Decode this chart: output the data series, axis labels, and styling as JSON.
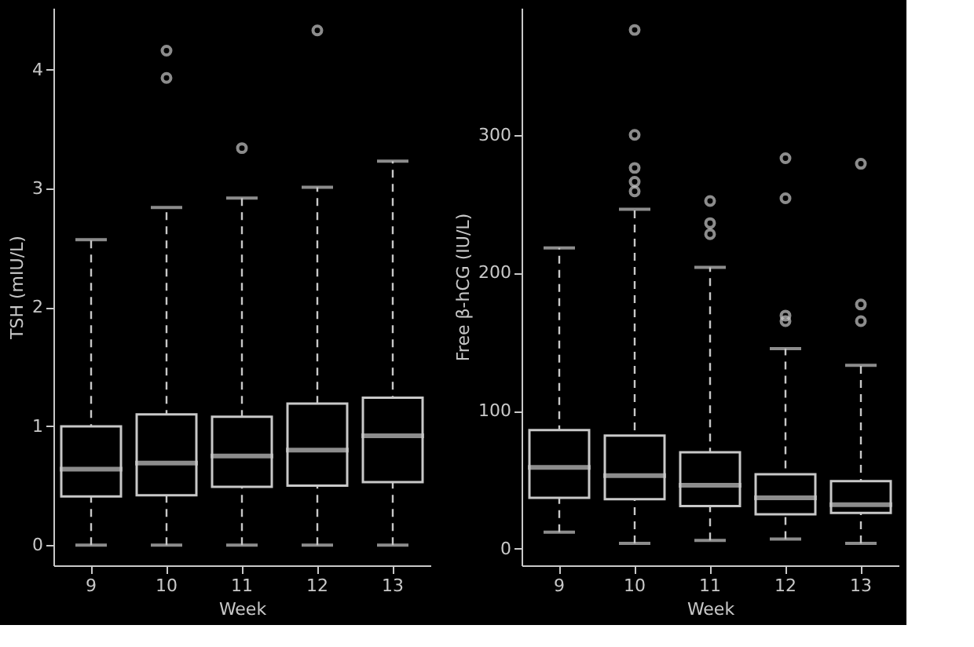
{
  "chart_data": [
    {
      "type": "box",
      "xlabel": "Week",
      "ylabel": "TSH (mIU/L)",
      "categories": [
        "9",
        "10",
        "11",
        "12",
        "13"
      ],
      "ylim": [
        -0.17,
        4.52
      ],
      "yticks": [
        0,
        1,
        2,
        3,
        4
      ],
      "grid": false,
      "line_style": "dashed",
      "series": [
        {
          "color": "#c8c8c8",
          "boxes": [
            {
              "low": 0,
              "q1": 0.41,
              "median": 0.64,
              "q3": 1.0,
              "high": 2.57
            },
            {
              "low": 0,
              "q1": 0.42,
              "median": 0.69,
              "q3": 1.1,
              "high": 2.84,
              "outliers": [
                4.16,
                3.93
              ]
            },
            {
              "low": 0,
              "q1": 0.49,
              "median": 0.75,
              "q3": 1.08,
              "high": 2.92,
              "outliers": [
                3.34
              ]
            },
            {
              "low": 0,
              "q1": 0.5,
              "median": 0.8,
              "q3": 1.19,
              "high": 3.01,
              "outliers": [
                4.33
              ]
            },
            {
              "low": 0,
              "q1": 0.53,
              "median": 0.92,
              "q3": 1.24,
              "high": 3.23
            }
          ]
        }
      ]
    },
    {
      "type": "box",
      "xlabel": "Week",
      "ylabel": "Free β-hCG (IU/L)",
      "categories": [
        "9",
        "10",
        "11",
        "12",
        "13"
      ],
      "ylim": [
        -12,
        392
      ],
      "yticks": [
        0,
        100,
        200,
        300
      ],
      "grid": false,
      "line_style": "dashed",
      "series": [
        {
          "color": "#c8c8c8",
          "boxes": [
            {
              "low": 12,
              "q1": 37,
              "median": 59,
              "q3": 86,
              "high": 218
            },
            {
              "low": 4,
              "q1": 36,
              "median": 53,
              "q3": 82,
              "high": 246,
              "outliers": [
                376,
                300,
                276,
                266,
                259
              ]
            },
            {
              "low": 6,
              "q1": 31,
              "median": 46,
              "q3": 70,
              "high": 204,
              "outliers": [
                252,
                236,
                228
              ]
            },
            {
              "low": 7,
              "q1": 25,
              "median": 37,
              "q3": 54,
              "high": 145,
              "outliers": [
                283,
                254,
                169,
                165
              ]
            },
            {
              "low": 4,
              "q1": 26,
              "median": 32,
              "q3": 49,
              "high": 133,
              "outliers": [
                279,
                177,
                165
              ]
            }
          ]
        }
      ]
    }
  ]
}
